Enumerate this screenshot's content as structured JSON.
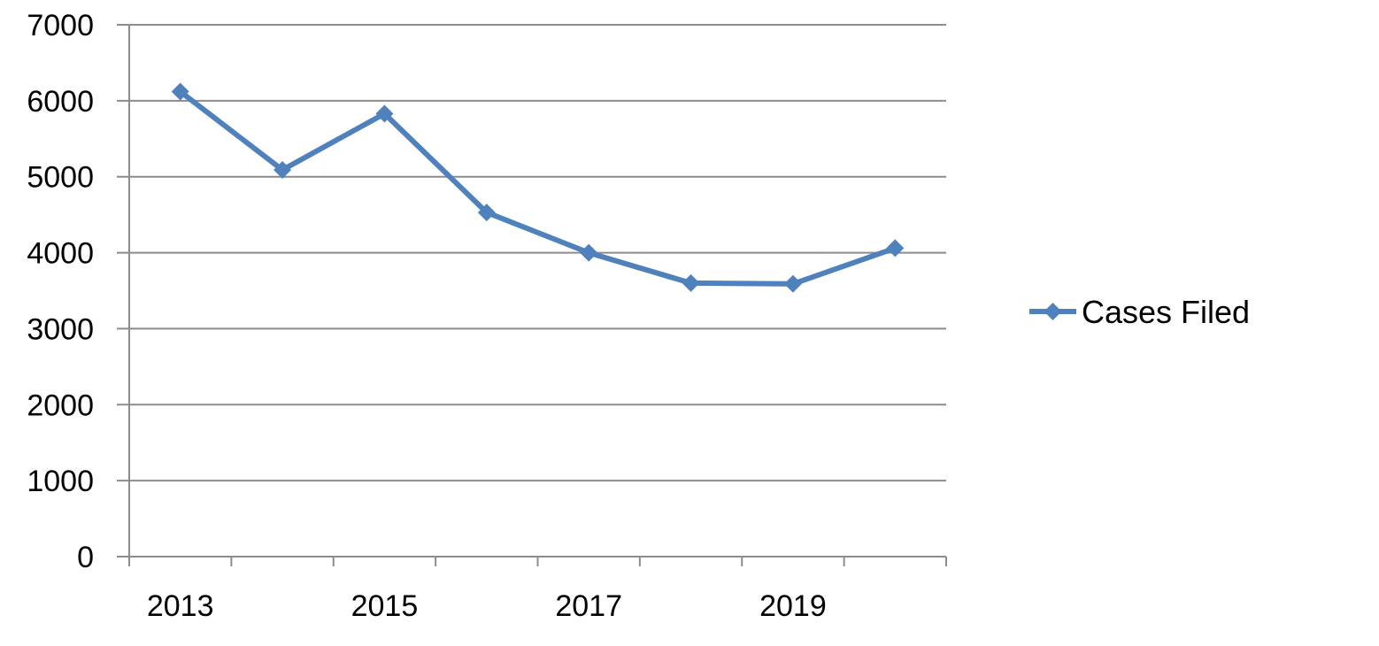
{
  "chart_data": {
    "type": "line",
    "title": "",
    "xlabel": "",
    "ylabel": "",
    "x": [
      2013,
      2014,
      2015,
      2016,
      2017,
      2018,
      2019,
      2020
    ],
    "x_tick_labels": [
      "2013",
      "",
      "2015",
      "",
      "2017",
      "",
      "2019",
      ""
    ],
    "y_tick_labels": [
      "0",
      "1000",
      "2000",
      "3000",
      "4000",
      "5000",
      "6000",
      "7000"
    ],
    "ylim": [
      0,
      7000
    ],
    "grid": "horizontal",
    "legend_position": "right",
    "series": [
      {
        "name": "Cases Filed",
        "color": "#4F81BD",
        "marker": "diamond",
        "values": [
          6120,
          5090,
          5830,
          4530,
          4000,
          3600,
          3590,
          4060
        ]
      }
    ]
  }
}
